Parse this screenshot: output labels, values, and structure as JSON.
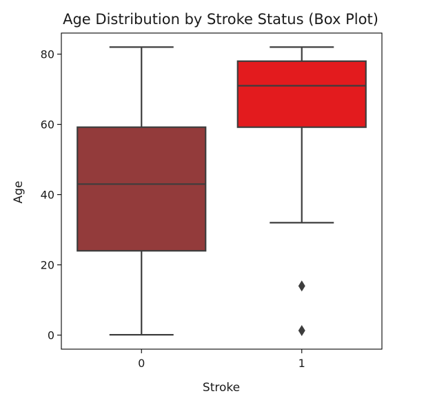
{
  "chart_data": {
    "type": "box",
    "title": "Age Distribution by Stroke Status (Box Plot)",
    "xlabel": "Stroke",
    "ylabel": "Age",
    "categories": [
      "0",
      "1"
    ],
    "ylim": [
      -4,
      86
    ],
    "yticks": [
      0,
      20,
      40,
      60,
      80
    ],
    "grid": false,
    "boxes": [
      {
        "category": "0",
        "whisker_low": 0.1,
        "q1": 24,
        "median": 43,
        "q3": 59.2,
        "whisker_high": 82,
        "outliers": [],
        "color": "#933b3b"
      },
      {
        "category": "1",
        "whisker_low": 32,
        "q1": 59.2,
        "median": 71,
        "q3": 78,
        "whisker_high": 82,
        "outliers": [
          14,
          1.3
        ],
        "color": "#e31b1e"
      }
    ],
    "line_color": "#3d3d3d"
  }
}
